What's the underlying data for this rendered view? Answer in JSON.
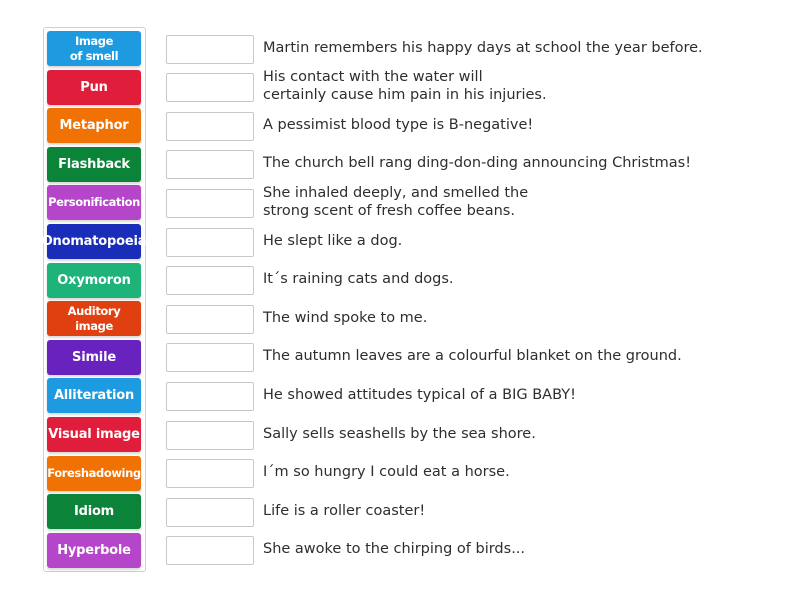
{
  "tiles": [
    {
      "label": "Image\nof smell",
      "color": "#1e9ae0"
    },
    {
      "label": "Pun",
      "color": "#e01e3c"
    },
    {
      "label": "Metaphor",
      "color": "#f07204"
    },
    {
      "label": "Flashback",
      "color": "#0b843a"
    },
    {
      "label": "Personification",
      "color": "#b545c9"
    },
    {
      "label": "Onomatopoeia",
      "color": "#1a2db8"
    },
    {
      "label": "Oxymoron",
      "color": "#1db379"
    },
    {
      "label": "Auditory\nimage",
      "color": "#e0400f"
    },
    {
      "label": "Simile",
      "color": "#6823be"
    },
    {
      "label": "Alliteration",
      "color": "#1e9ae0"
    },
    {
      "label": "Visual image",
      "color": "#e01e3c"
    },
    {
      "label": "Foreshadowing",
      "color": "#f07204"
    },
    {
      "label": "Idiom",
      "color": "#0b843a"
    },
    {
      "label": "Hyperbole",
      "color": "#b545c9"
    }
  ],
  "clues": [
    "Martin remembers his happy days at school the year before.",
    "His contact with the water will\ncertainly cause him pain in his injuries.",
    "A pessimist blood type is B-negative!",
    "The church bell rang ding-don-ding announcing Christmas!",
    "She inhaled deeply, and smelled the\nstrong scent of fresh coffee beans.",
    "He slept like a dog.",
    "It´s raining cats and dogs.",
    "The wind spoke to me.",
    "The autumn leaves are a colourful blanket on the ground.",
    "He showed attitudes typical of a BIG BABY!",
    "Sally sells seashells by the sea shore.",
    "I´m so hungry I could eat a horse.",
    "Life is a roller coaster!",
    "She awoke to the chirping of birds..."
  ]
}
